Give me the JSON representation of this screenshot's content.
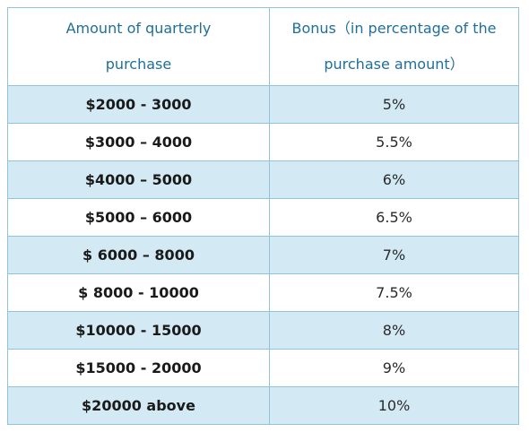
{
  "table": {
    "headers": {
      "amount": "Amount of quarterly purchase",
      "bonus": "Bonus（in percentage of the purchase amount）"
    },
    "rows": [
      {
        "amount": "$2000 - 3000",
        "bonus": "5%"
      },
      {
        "amount": "$3000 – 4000",
        "bonus": "5.5%"
      },
      {
        "amount": "$4000 – 5000",
        "bonus": "6%"
      },
      {
        "amount": "$5000 – 6000",
        "bonus": "6.5%"
      },
      {
        "amount": "$ 6000 – 8000",
        "bonus": "7%"
      },
      {
        "amount": "$ 8000 - 10000",
        "bonus": "7.5%"
      },
      {
        "amount": "$10000 - 15000",
        "bonus": "8%"
      },
      {
        "amount": "$15000 - 20000",
        "bonus": "9%"
      },
      {
        "amount": "$20000 above",
        "bonus": "10%"
      }
    ]
  },
  "colors": {
    "header_text": "#1f6f9a",
    "border": "#8fc4dc",
    "shaded_row": "#d3eaf5"
  }
}
